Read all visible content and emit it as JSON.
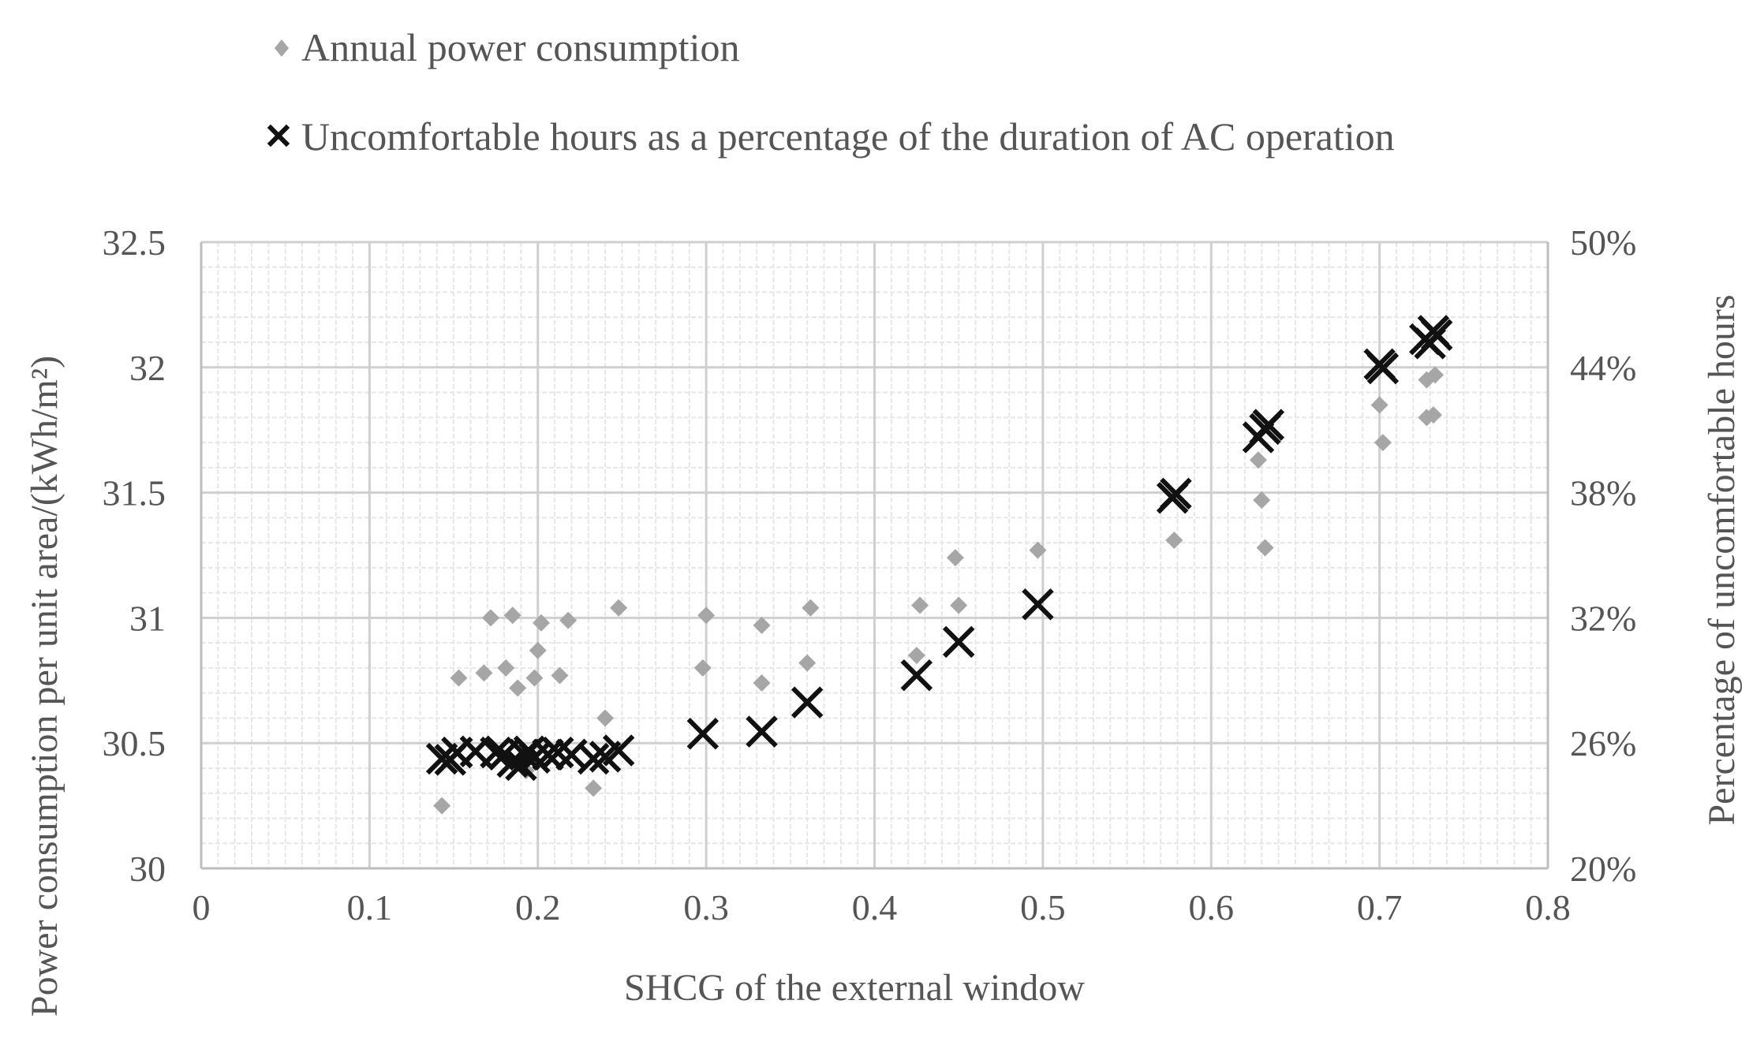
{
  "chart_data": {
    "type": "scatter",
    "title": "",
    "xlabel": "SHCG of the external window",
    "ylabel_left": "Power consumption per unit area/(kWh/m²)",
    "ylabel_right": "Percentage of uncomfortable hours",
    "xlim": [
      0,
      0.8
    ],
    "ylim_left": [
      30,
      32.5
    ],
    "ylim_right": [
      0.2,
      0.5
    ],
    "x_ticks": [
      "0",
      "0.1",
      "0.2",
      "0.3",
      "0.4",
      "0.5",
      "0.6",
      "0.7",
      "0.8"
    ],
    "x_tick_values": [
      0,
      0.1,
      0.2,
      0.3,
      0.4,
      0.5,
      0.6,
      0.7,
      0.8
    ],
    "y_left_ticks": [
      "30",
      "30.5",
      "31",
      "31.5",
      "32",
      "32.5"
    ],
    "y_left_tick_values": [
      30,
      30.5,
      31,
      31.5,
      32,
      32.5
    ],
    "y_right_ticks": [
      "20%",
      "26%",
      "32%",
      "38%",
      "44%",
      "50%"
    ],
    "y_right_tick_values": [
      0.2,
      0.26,
      0.32,
      0.38,
      0.44,
      0.5
    ],
    "grid": "major and minor",
    "legend_position": "top",
    "series": [
      {
        "name": "Annual power consumption",
        "axis": "left",
        "marker": "diamond",
        "color": "#a6a6a6",
        "points": [
          [
            0.143,
            30.25
          ],
          [
            0.153,
            30.76
          ],
          [
            0.168,
            30.78
          ],
          [
            0.172,
            31.0
          ],
          [
            0.181,
            30.8
          ],
          [
            0.185,
            31.01
          ],
          [
            0.188,
            30.72
          ],
          [
            0.193,
            30.39
          ],
          [
            0.198,
            30.76
          ],
          [
            0.2,
            30.87
          ],
          [
            0.202,
            30.98
          ],
          [
            0.213,
            30.77
          ],
          [
            0.218,
            30.99
          ],
          [
            0.233,
            30.32
          ],
          [
            0.24,
            30.6
          ],
          [
            0.248,
            31.04
          ],
          [
            0.298,
            30.8
          ],
          [
            0.3,
            31.01
          ],
          [
            0.333,
            30.74
          ],
          [
            0.333,
            30.97
          ],
          [
            0.36,
            30.82
          ],
          [
            0.362,
            31.04
          ],
          [
            0.425,
            30.85
          ],
          [
            0.427,
            31.05
          ],
          [
            0.448,
            31.24
          ],
          [
            0.45,
            31.05
          ],
          [
            0.497,
            31.27
          ],
          [
            0.578,
            31.31
          ],
          [
            0.628,
            31.63
          ],
          [
            0.63,
            31.47
          ],
          [
            0.632,
            31.28
          ],
          [
            0.7,
            31.85
          ],
          [
            0.702,
            31.7
          ],
          [
            0.728,
            31.8
          ],
          [
            0.728,
            31.95
          ],
          [
            0.732,
            31.81
          ],
          [
            0.733,
            31.97
          ]
        ]
      },
      {
        "name": "Uncomfortable hours as a percentage of the duration of AC operation",
        "axis": "right",
        "marker": "x",
        "color": "#111111",
        "points": [
          [
            0.143,
            0.2525
          ],
          [
            0.148,
            0.252
          ],
          [
            0.152,
            0.2555
          ],
          [
            0.163,
            0.256
          ],
          [
            0.175,
            0.2555
          ],
          [
            0.18,
            0.2545
          ],
          [
            0.185,
            0.251
          ],
          [
            0.19,
            0.2495
          ],
          [
            0.192,
            0.2545
          ],
          [
            0.195,
            0.256
          ],
          [
            0.198,
            0.253
          ],
          [
            0.206,
            0.2545
          ],
          [
            0.212,
            0.2555
          ],
          [
            0.22,
            0.2545
          ],
          [
            0.233,
            0.2525
          ],
          [
            0.24,
            0.2535
          ],
          [
            0.248,
            0.2565
          ],
          [
            0.298,
            0.2645
          ],
          [
            0.333,
            0.2655
          ],
          [
            0.36,
            0.2795
          ],
          [
            0.425,
            0.2925
          ],
          [
            0.45,
            0.3085
          ],
          [
            0.497,
            0.3265
          ],
          [
            0.577,
            0.3775
          ],
          [
            0.579,
            0.3795
          ],
          [
            0.628,
            0.4065
          ],
          [
            0.632,
            0.4105
          ],
          [
            0.634,
            0.4125
          ],
          [
            0.7,
            0.4415
          ],
          [
            0.702,
            0.4395
          ],
          [
            0.727,
            0.4535
          ],
          [
            0.73,
            0.4515
          ],
          [
            0.732,
            0.4575
          ],
          [
            0.734,
            0.4555
          ]
        ]
      }
    ]
  }
}
